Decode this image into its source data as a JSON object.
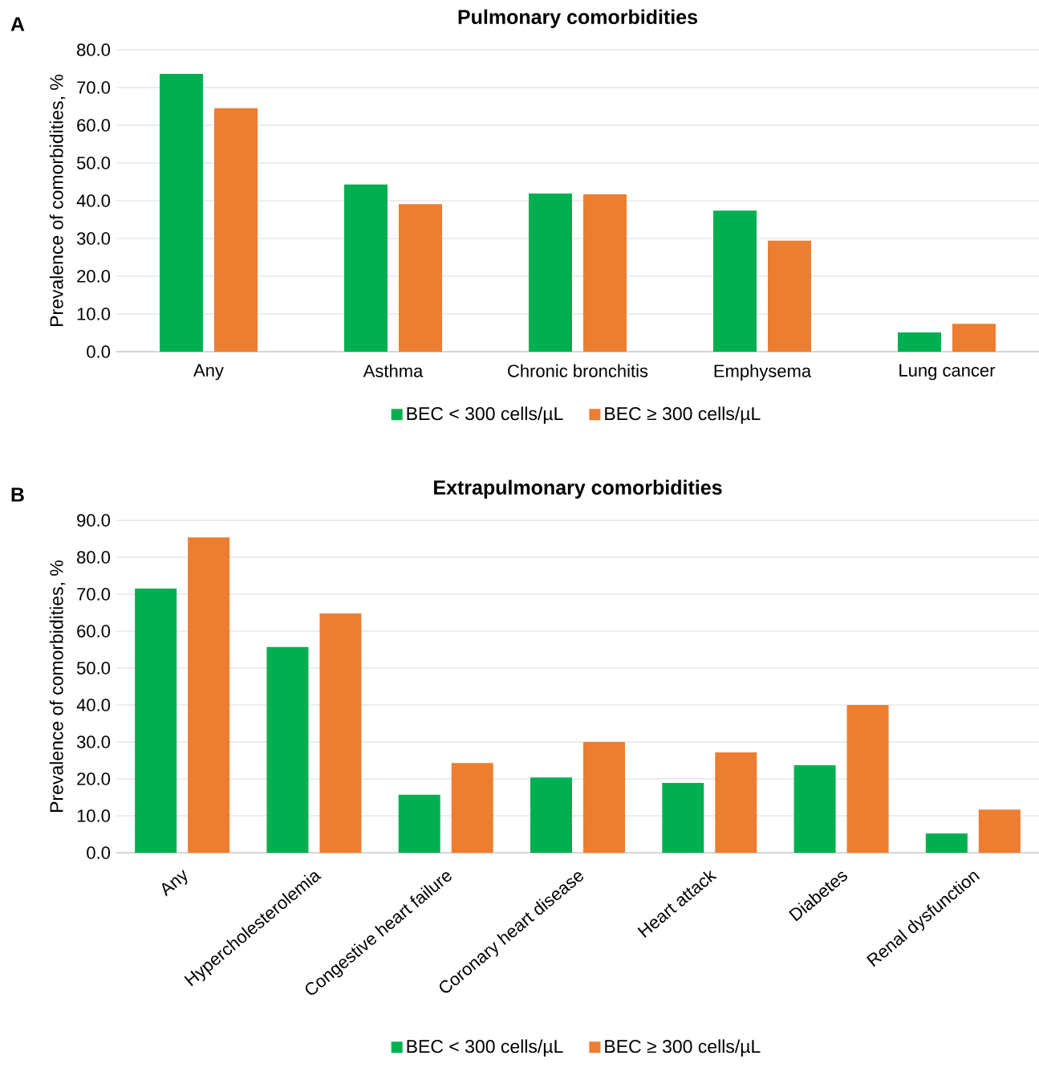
{
  "chart_data": [
    {
      "type": "bar",
      "title": "Pulmonary comorbidities",
      "ylabel": "Prevalence of comorbidities, %",
      "annotations": [
        "A"
      ],
      "categories": [
        "Any",
        "Asthma",
        "Chronic bronchitis",
        "Emphysema",
        "Lung cancer"
      ],
      "series": [
        {
          "name": "BEC < 300 cells/µL",
          "color": "#00b050",
          "values": [
            73.6,
            44.3,
            41.9,
            37.4,
            5.1
          ]
        },
        {
          "name": "BEC ≥ 300 cells/µL",
          "color": "#ed7d31",
          "values": [
            64.5,
            39.1,
            41.7,
            29.4,
            7.4
          ]
        }
      ],
      "ylim": [
        0,
        80
      ],
      "yticks": [
        {
          "value": 0,
          "label": "0.0"
        },
        {
          "value": 10,
          "label": "10.0"
        },
        {
          "value": 20,
          "label": "20.0"
        },
        {
          "value": 30,
          "label": "30.0"
        },
        {
          "value": 40,
          "label": "40.0"
        },
        {
          "value": 50,
          "label": "50.0"
        },
        {
          "value": 60,
          "label": "60.0"
        },
        {
          "value": 70,
          "label": "70.0"
        },
        {
          "value": 80,
          "label": "80.0"
        }
      ],
      "grid": "y",
      "legend": "bottom"
    },
    {
      "type": "bar",
      "title": "Extrapulmonary comorbidities",
      "ylabel": "Prevalence of comorbidities, %",
      "annotations": [
        "B"
      ],
      "categories": [
        "Any",
        "Hypercholesterolemia",
        "Congestive heart failure",
        "Coronary heart disease",
        "Heart attack",
        "Diabetes",
        "Renal dysfunction"
      ],
      "series": [
        {
          "name": "BEC < 300 cells/µL",
          "color": "#00b050",
          "values": [
            71.5,
            55.7,
            15.7,
            20.4,
            18.9,
            23.7,
            5.2
          ]
        },
        {
          "name": "BEC ≥ 300 cells/µL",
          "color": "#ed7d31",
          "values": [
            85.4,
            64.8,
            24.3,
            30.0,
            27.2,
            40.0,
            11.7
          ]
        }
      ],
      "ylim": [
        0,
        90
      ],
      "yticks": [
        {
          "value": 0,
          "label": "0.0"
        },
        {
          "value": 10,
          "label": "10.0"
        },
        {
          "value": 20,
          "label": "20.0"
        },
        {
          "value": 30,
          "label": "30.0"
        },
        {
          "value": 40,
          "label": "40.0"
        },
        {
          "value": 50,
          "label": "50.0"
        },
        {
          "value": 60,
          "label": "60.0"
        },
        {
          "value": 70,
          "label": "70.0"
        },
        {
          "value": 80,
          "label": "80.0"
        },
        {
          "value": 90,
          "label": "90.0"
        }
      ],
      "grid": "y",
      "legend": "bottom"
    }
  ]
}
